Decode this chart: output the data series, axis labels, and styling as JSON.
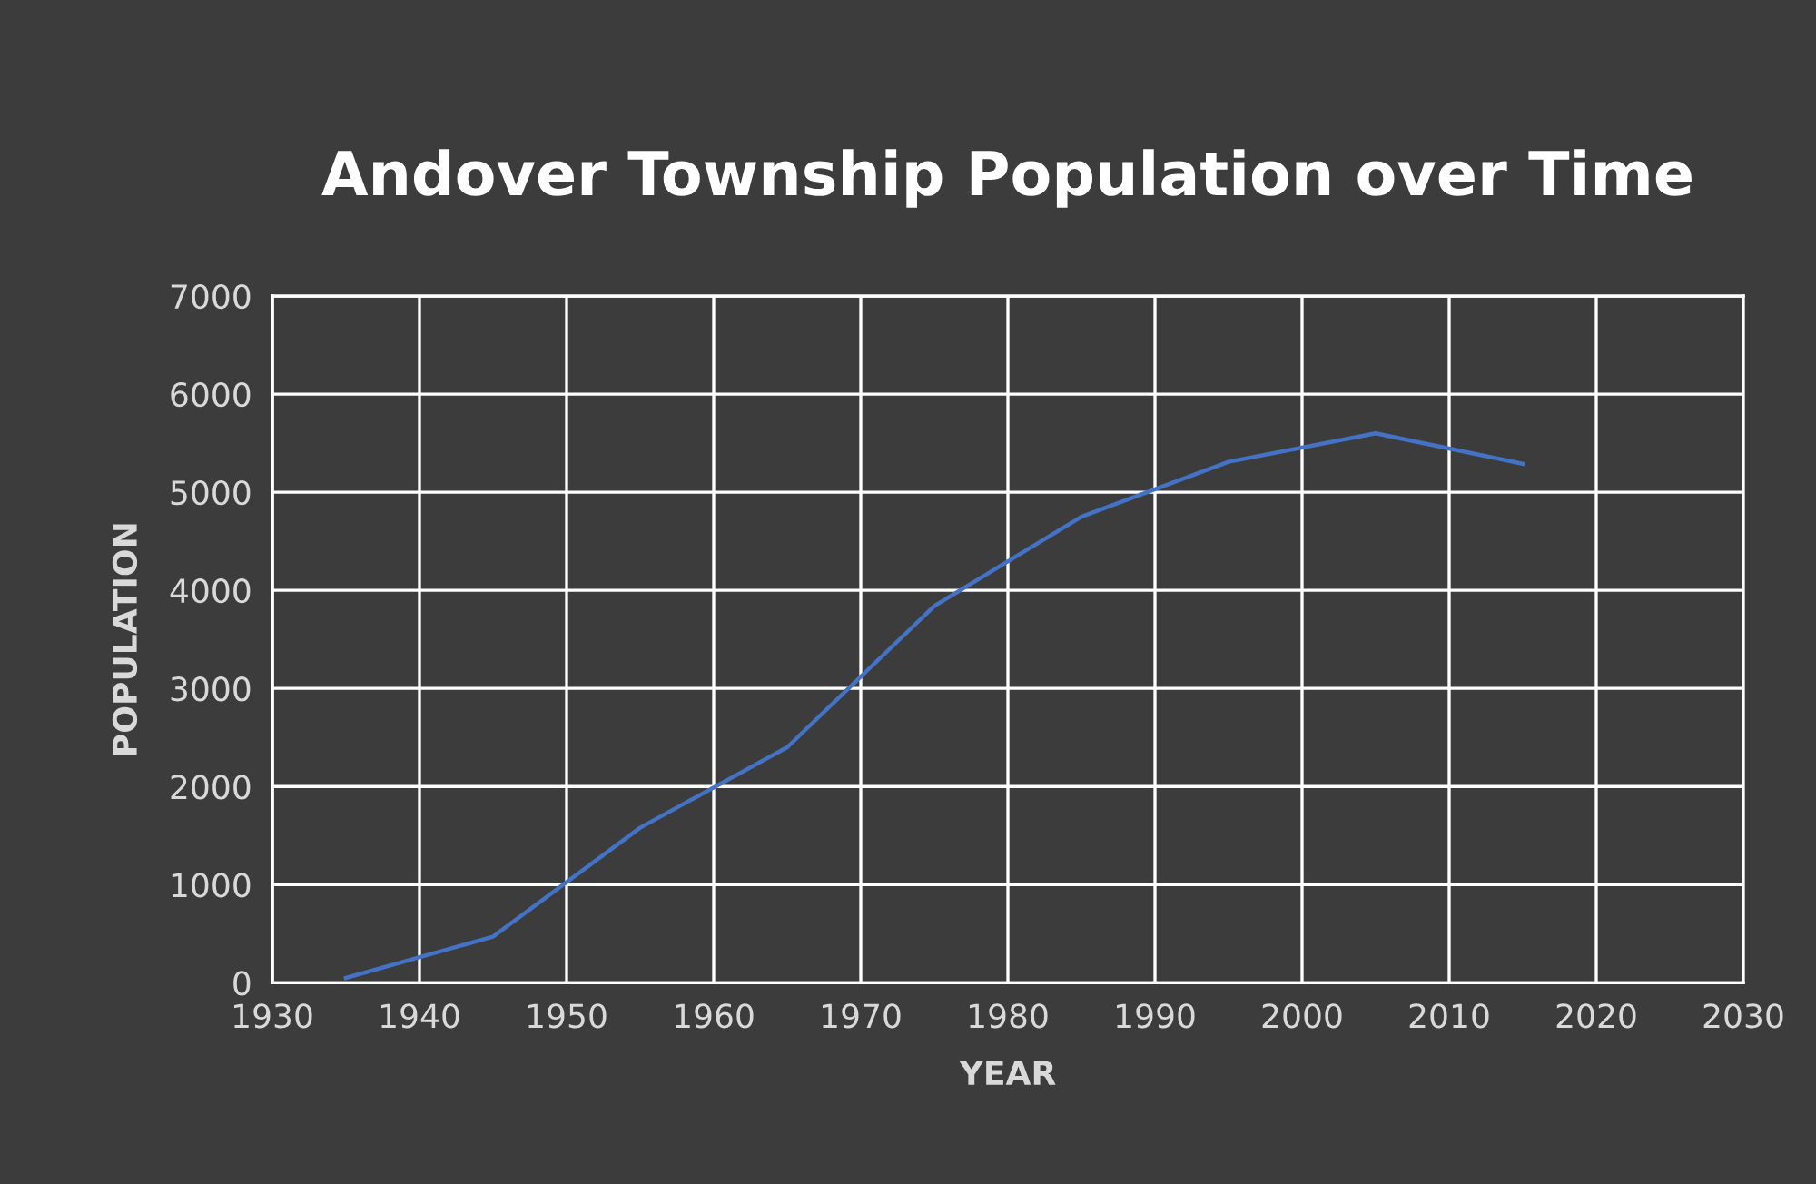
{
  "chart_data": {
    "type": "line",
    "title": "Andover Township Population over Time",
    "xlabel": "YEAR",
    "ylabel": "POPULATION",
    "x": [
      1935,
      1945,
      1955,
      1965,
      1975,
      1985,
      1995,
      2005,
      2015
    ],
    "series": [
      {
        "color": "#4472c4",
        "values": [
          50,
          470,
          1580,
          2400,
          3840,
          4750,
          5310,
          5600,
          5290
        ]
      }
    ],
    "xlim": [
      1930,
      2030
    ],
    "xticks": [
      1930,
      1940,
      1950,
      1960,
      1970,
      1980,
      1990,
      2000,
      2010,
      2020,
      2030
    ],
    "ylim": [
      0,
      7000
    ],
    "yticks": [
      0,
      1000,
      2000,
      3000,
      4000,
      5000,
      6000,
      7000
    ],
    "grid": true,
    "marker": "none",
    "line_style": "solid"
  }
}
